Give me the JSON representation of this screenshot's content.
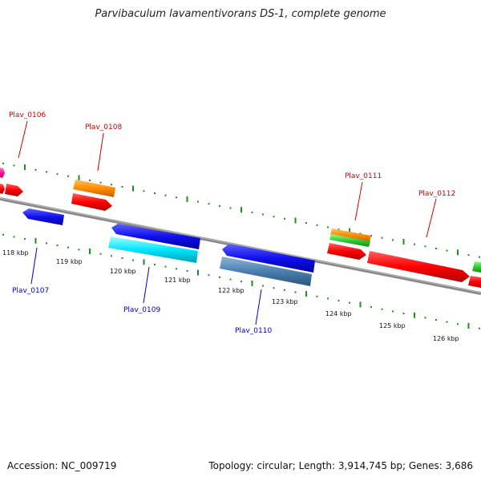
{
  "title": "Parvibaculum lavamentivorans DS-1, complete genome",
  "footer": {
    "accession": "Accession: NC_009719",
    "summary": "Topology: circular; Length: 3,914,745 bp; Genes: 3,686"
  },
  "scale": {
    "upper_dots_color": "#228b22",
    "lower_dots_color": "#228b22",
    "labels": [
      "118 kbp",
      "119 kbp",
      "120 kbp",
      "121 kbp",
      "122 kbp",
      "123 kbp",
      "124 kbp",
      "125 kbp",
      "126 kbp"
    ]
  },
  "genes": {
    "top_labels": [
      {
        "name": "Plav_0106",
        "color": "#cc0000"
      },
      {
        "name": "Plav_0108",
        "color": "#cc0000"
      },
      {
        "name": "Plav_0111",
        "color": "#cc0000"
      },
      {
        "name": "Plav_0112",
        "color": "#cc0000"
      }
    ],
    "bottom_labels": [
      {
        "name": "Plav_0107",
        "color": "#0000cc"
      },
      {
        "name": "Plav_0109",
        "color": "#0000cc"
      },
      {
        "name": "Plav_0110",
        "color": "#0000cc"
      }
    ]
  },
  "colors": {
    "red": "#ff0000",
    "orange": "#ff8c00",
    "blue": "#1a1aff",
    "cyan": "#00e5ff",
    "steelblue": "#4a7fb0",
    "green": "#33cc33",
    "magenta": "#ff1493",
    "backbone": "#888888"
  }
}
